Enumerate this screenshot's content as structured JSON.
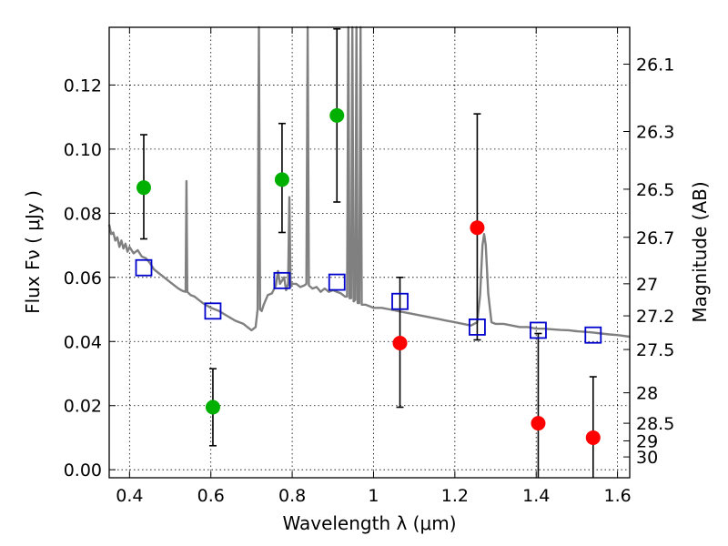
{
  "chart_data": {
    "type": "scatter",
    "xlabel": "Wavelength  λ (μm)",
    "ylabel": "Flux  Fν  ( μJy )",
    "y2label": "Magnitude (AB)",
    "xlim": [
      0.35,
      1.63
    ],
    "ylim": [
      -0.0025,
      0.138
    ],
    "grid": true,
    "x_ticks": [
      {
        "value": 0.4,
        "label": "0.4"
      },
      {
        "value": 0.6,
        "label": "0.6"
      },
      {
        "value": 0.8,
        "label": "0.8"
      },
      {
        "value": 1.0,
        "label": "1"
      },
      {
        "value": 1.2,
        "label": "1.2"
      },
      {
        "value": 1.4,
        "label": "1.4"
      },
      {
        "value": 1.6,
        "label": "1.6"
      }
    ],
    "y_ticks": [
      {
        "value": 0.0,
        "label": "0.00"
      },
      {
        "value": 0.02,
        "label": "0.02"
      },
      {
        "value": 0.04,
        "label": "0.04"
      },
      {
        "value": 0.06,
        "label": "0.06"
      },
      {
        "value": 0.08,
        "label": "0.08"
      },
      {
        "value": 0.1,
        "label": "0.10"
      },
      {
        "value": 0.12,
        "label": "0.12"
      }
    ],
    "y2_ticks": [
      {
        "flux": 0.1265,
        "label": "26.1"
      },
      {
        "flux": 0.1055,
        "label": "26.3"
      },
      {
        "flux": 0.0875,
        "label": "26.5"
      },
      {
        "flux": 0.0725,
        "label": "26.7"
      },
      {
        "flux": 0.058,
        "label": "27"
      },
      {
        "flux": 0.048,
        "label": "27.2"
      },
      {
        "flux": 0.0375,
        "label": "27.5"
      },
      {
        "flux": 0.024,
        "label": "28"
      },
      {
        "flux": 0.0145,
        "label": "28.5"
      },
      {
        "flux": 0.009,
        "label": "29"
      },
      {
        "flux": 0.004,
        "label": "30"
      }
    ],
    "series": [
      {
        "marker": "circle",
        "color": "#00b000",
        "points": [
          {
            "x": 0.435,
            "y": 0.088,
            "err_low": 0.072,
            "err_high": 0.1045
          },
          {
            "x": 0.605,
            "y": 0.0195,
            "err_low": 0.0075,
            "err_high": 0.0315
          },
          {
            "x": 0.775,
            "y": 0.0905,
            "err_low": 0.074,
            "err_high": 0.108
          },
          {
            "x": 0.91,
            "y": 0.1105,
            "err_low": 0.0835,
            "err_high": 0.1375
          }
        ]
      },
      {
        "marker": "circle",
        "color": "#ff0000",
        "points": [
          {
            "x": 1.065,
            "y": 0.0395,
            "err_low": 0.0195,
            "err_high": 0.06
          },
          {
            "x": 1.255,
            "y": 0.0755,
            "err_low": 0.0405,
            "err_high": 0.111
          },
          {
            "x": 1.405,
            "y": 0.0145,
            "err_low": -0.0025,
            "err_high": 0.0425
          },
          {
            "x": 1.54,
            "y": 0.01,
            "err_low": -0.0025,
            "err_high": 0.029
          }
        ]
      },
      {
        "marker": "open-square",
        "color": "#0000cc",
        "points": [
          {
            "x": 0.435,
            "y": 0.063
          },
          {
            "x": 0.605,
            "y": 0.0495
          },
          {
            "x": 0.775,
            "y": 0.059
          },
          {
            "x": 0.91,
            "y": 0.0585
          },
          {
            "x": 1.065,
            "y": 0.0525
          },
          {
            "x": 1.255,
            "y": 0.0445
          },
          {
            "x": 1.405,
            "y": 0.0435
          },
          {
            "x": 1.54,
            "y": 0.042
          }
        ]
      },
      {
        "marker": "line",
        "color": "#808080",
        "points": [
          [
            0.35,
            0.0765
          ],
          [
            0.355,
            0.0735
          ],
          [
            0.36,
            0.074
          ],
          [
            0.365,
            0.0715
          ],
          [
            0.37,
            0.0725
          ],
          [
            0.375,
            0.0695
          ],
          [
            0.38,
            0.0715
          ],
          [
            0.385,
            0.069
          ],
          [
            0.39,
            0.0705
          ],
          [
            0.395,
            0.068
          ],
          [
            0.4,
            0.0695
          ],
          [
            0.41,
            0.0675
          ],
          [
            0.42,
            0.0685
          ],
          [
            0.43,
            0.0665
          ],
          [
            0.44,
            0.066
          ],
          [
            0.45,
            0.0645
          ],
          [
            0.46,
            0.0625
          ],
          [
            0.47,
            0.0615
          ],
          [
            0.48,
            0.0605
          ],
          [
            0.49,
            0.0595
          ],
          [
            0.5,
            0.0585
          ],
          [
            0.51,
            0.0575
          ],
          [
            0.52,
            0.0565
          ],
          [
            0.53,
            0.0558
          ],
          [
            0.538,
            0.0555
          ],
          [
            0.54,
            0.09
          ],
          [
            0.542,
            0.0555
          ],
          [
            0.55,
            0.0545
          ],
          [
            0.56,
            0.054
          ],
          [
            0.57,
            0.053
          ],
          [
            0.58,
            0.052
          ],
          [
            0.6,
            0.0505
          ],
          [
            0.62,
            0.0495
          ],
          [
            0.64,
            0.048
          ],
          [
            0.66,
            0.0465
          ],
          [
            0.68,
            0.0455
          ],
          [
            0.69,
            0.0445
          ],
          [
            0.7,
            0.0435
          ],
          [
            0.71,
            0.0445
          ],
          [
            0.715,
            0.05
          ],
          [
            0.718,
            0.138
          ],
          [
            0.721,
            0.05
          ],
          [
            0.725,
            0.0495
          ],
          [
            0.73,
            0.0515
          ],
          [
            0.74,
            0.0545
          ],
          [
            0.75,
            0.055
          ],
          [
            0.76,
            0.0575
          ],
          [
            0.765,
            0.062
          ],
          [
            0.77,
            0.058
          ],
          [
            0.78,
            0.06
          ],
          [
            0.785,
            0.056
          ],
          [
            0.79,
            0.058
          ],
          [
            0.793,
            0.085
          ],
          [
            0.796,
            0.057
          ],
          [
            0.8,
            0.058
          ],
          [
            0.81,
            0.058
          ],
          [
            0.82,
            0.057
          ],
          [
            0.83,
            0.0575
          ],
          [
            0.835,
            0.058
          ],
          [
            0.838,
            0.138
          ],
          [
            0.841,
            0.0575
          ],
          [
            0.85,
            0.0565
          ],
          [
            0.86,
            0.057
          ],
          [
            0.87,
            0.0555
          ],
          [
            0.88,
            0.0565
          ],
          [
            0.89,
            0.0555
          ],
          [
            0.9,
            0.056
          ],
          [
            0.91,
            0.0555
          ],
          [
            0.92,
            0.055
          ],
          [
            0.93,
            0.054
          ],
          [
            0.935,
            0.054
          ],
          [
            0.938,
            0.138
          ],
          [
            0.941,
            0.0535
          ],
          [
            0.945,
            0.0535
          ],
          [
            0.948,
            0.138
          ],
          [
            0.951,
            0.0525
          ],
          [
            0.955,
            0.053
          ],
          [
            0.958,
            0.138
          ],
          [
            0.961,
            0.052
          ],
          [
            0.965,
            0.052
          ],
          [
            0.968,
            0.138
          ],
          [
            0.971,
            0.0515
          ],
          [
            0.98,
            0.0515
          ],
          [
            0.99,
            0.051
          ],
          [
            1.0,
            0.0505
          ],
          [
            1.02,
            0.0505
          ],
          [
            1.04,
            0.05
          ],
          [
            1.06,
            0.0495
          ],
          [
            1.08,
            0.049
          ],
          [
            1.1,
            0.0485
          ],
          [
            1.12,
            0.048
          ],
          [
            1.14,
            0.0475
          ],
          [
            1.16,
            0.047
          ],
          [
            1.18,
            0.0465
          ],
          [
            1.2,
            0.046
          ],
          [
            1.22,
            0.0455
          ],
          [
            1.24,
            0.045
          ],
          [
            1.255,
            0.046
          ],
          [
            1.262,
            0.0545
          ],
          [
            1.268,
            0.07
          ],
          [
            1.272,
            0.0735
          ],
          [
            1.276,
            0.07
          ],
          [
            1.282,
            0.055
          ],
          [
            1.29,
            0.046
          ],
          [
            1.3,
            0.0455
          ],
          [
            1.32,
            0.0455
          ],
          [
            1.34,
            0.045
          ],
          [
            1.36,
            0.0445
          ],
          [
            1.38,
            0.0445
          ],
          [
            1.4,
            0.044
          ],
          [
            1.42,
            0.044
          ],
          [
            1.44,
            0.0438
          ],
          [
            1.46,
            0.0436
          ],
          [
            1.48,
            0.0435
          ],
          [
            1.5,
            0.0432
          ],
          [
            1.52,
            0.043
          ],
          [
            1.54,
            0.0428
          ],
          [
            1.56,
            0.0425
          ],
          [
            1.58,
            0.0422
          ],
          [
            1.6,
            0.042
          ],
          [
            1.63,
            0.0415
          ]
        ]
      }
    ]
  }
}
